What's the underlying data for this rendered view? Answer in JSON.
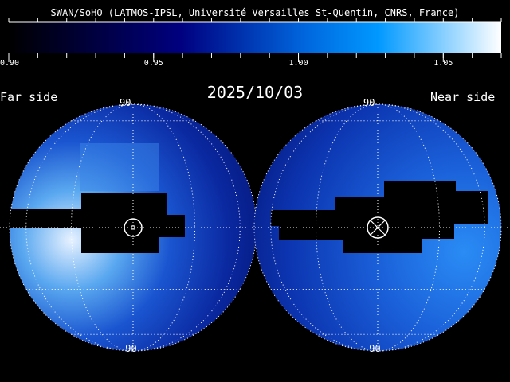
{
  "credit": "SWAN/SoHO (LATMOS-IPSL, Université Versailles St-Quentin, CNRS, France)",
  "date": "2025/10/03",
  "far_side_label": "Far side",
  "near_side_label": "Near side",
  "colorbar": {
    "range": [
      0.9,
      1.07
    ],
    "ticks": [
      {
        "value": 0.9,
        "label": "0.90"
      },
      {
        "value": 0.95,
        "label": "0.95"
      },
      {
        "value": 1.0,
        "label": "1.00"
      },
      {
        "value": 1.05,
        "label": "1.05"
      }
    ],
    "minor_step": 0.01,
    "colors": [
      "#000000",
      "#000080",
      "#0066dd",
      "#0099ff",
      "#ffffff"
    ]
  },
  "hemispheres": [
    {
      "side": "far",
      "lat_top": "90",
      "lat_bottom": "-90",
      "center_symbol": "sun-dot-icon"
    },
    {
      "side": "near",
      "lat_top": "90",
      "lat_bottom": "-90",
      "center_symbol": "anti-sun-cross-icon"
    }
  ],
  "graticule_step_deg": 30
}
